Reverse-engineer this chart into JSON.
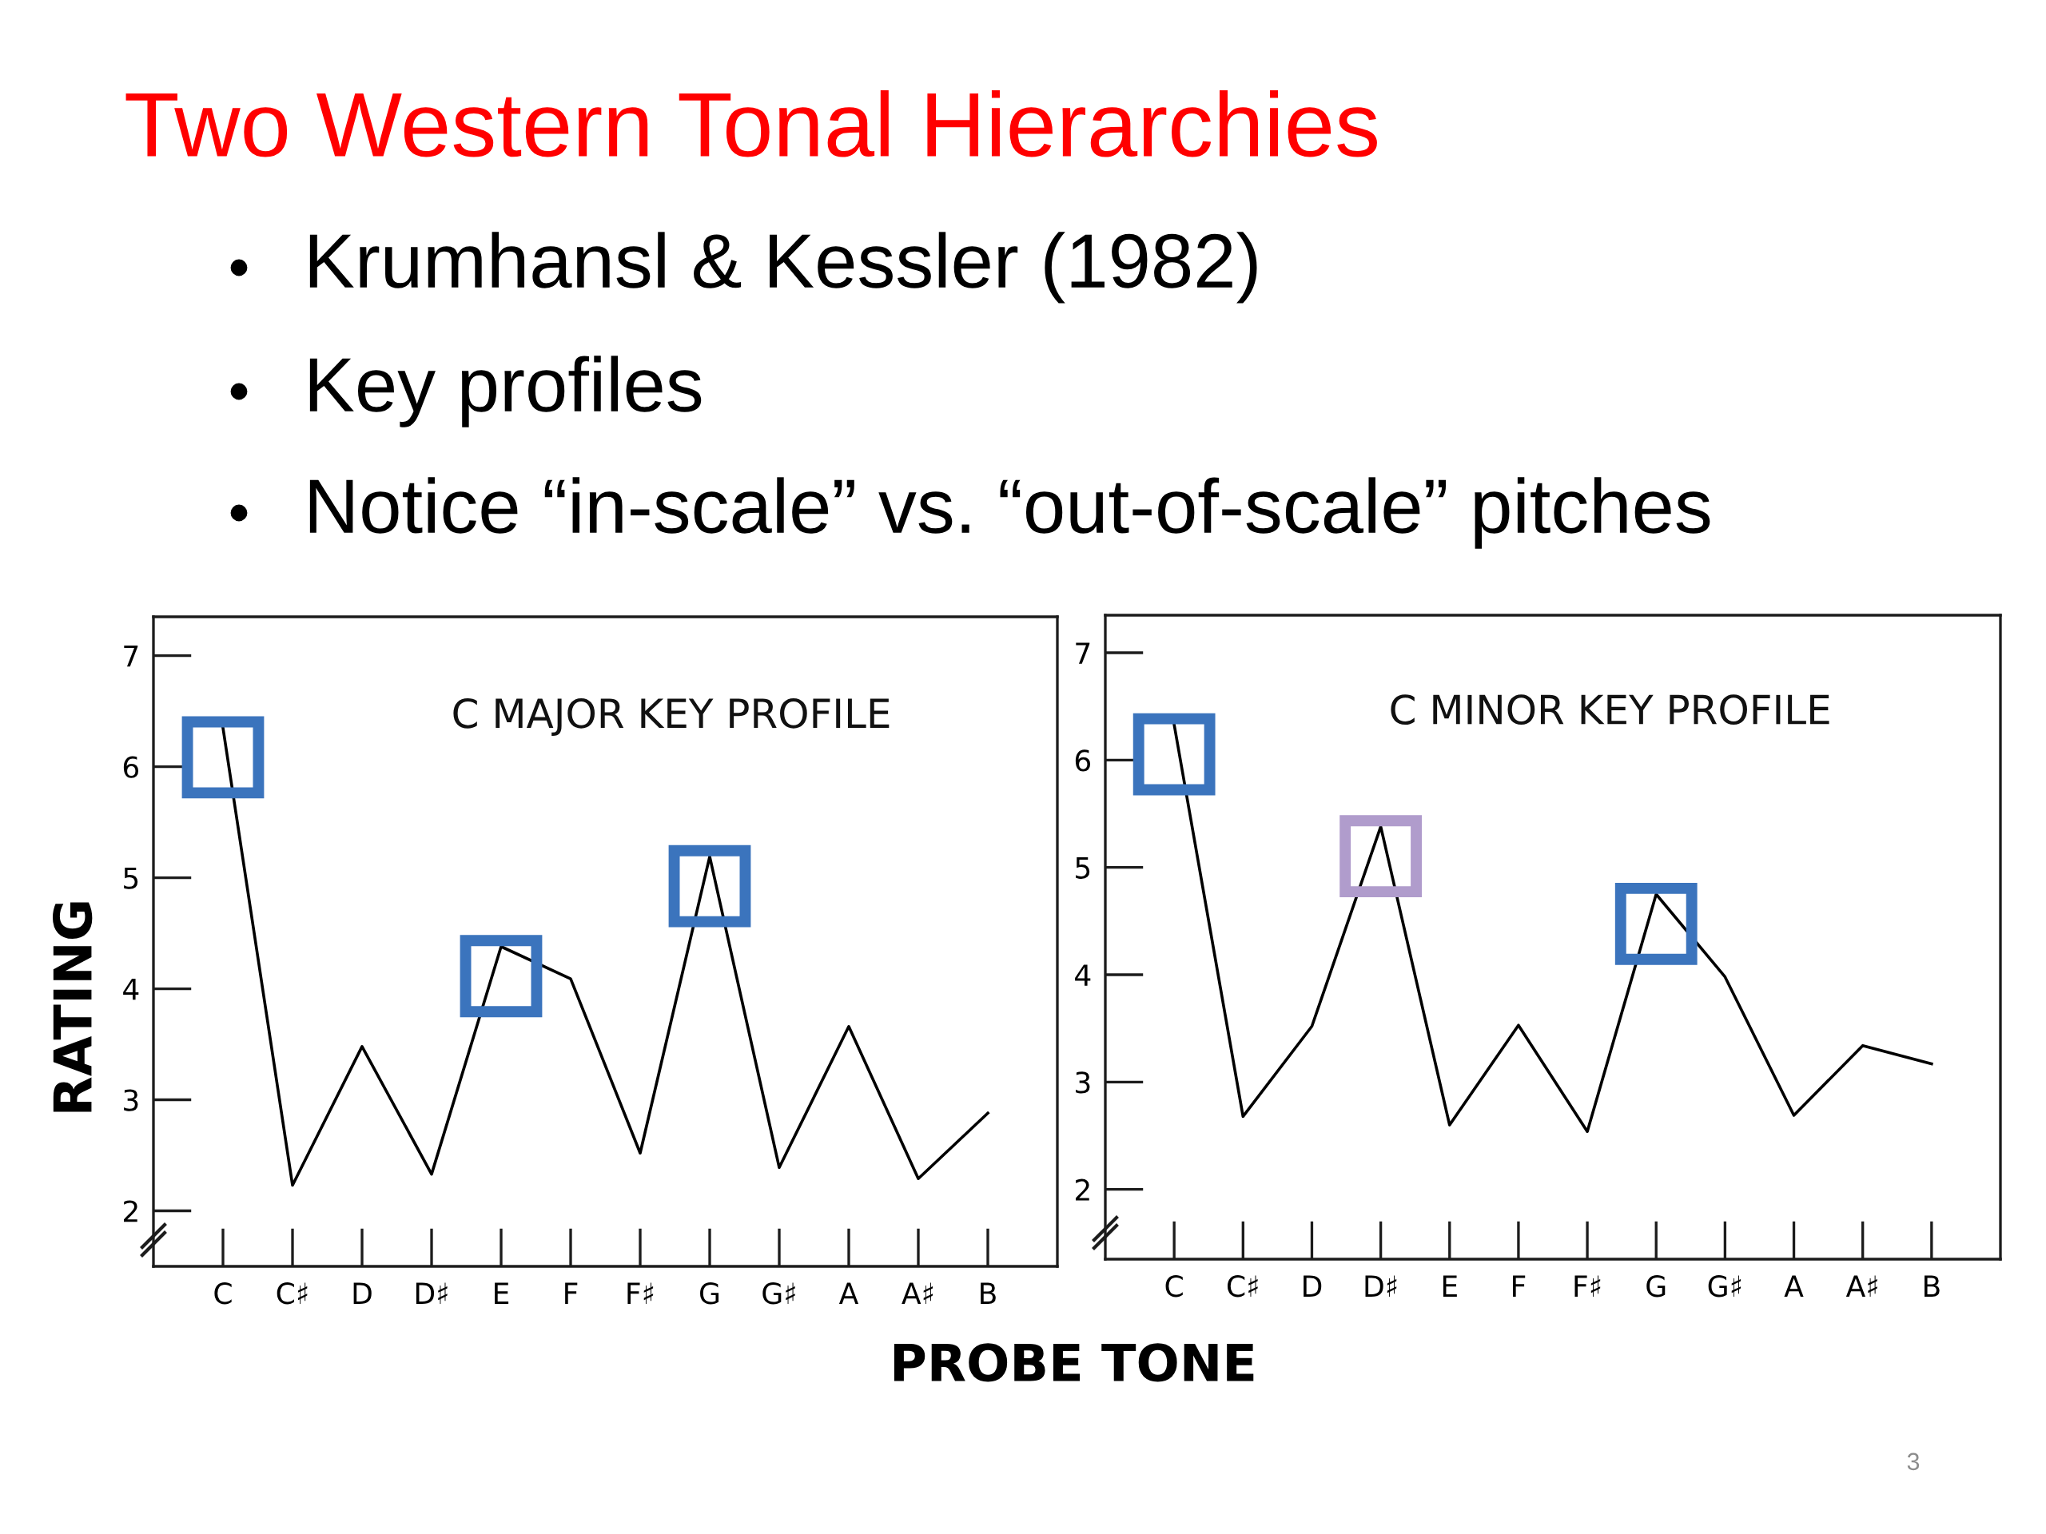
{
  "chart_data": [
    {
      "type": "other",
      "title": "Two Western Tonal Hierarchies",
      "annotations": [
        "Krumhansl & Kessler (1982)",
        "Key profiles",
        "Notice “in-scale” vs. “out-of-scale” pitches",
        "3"
      ]
    },
    {
      "type": "line",
      "title": "C MAJOR KEY PROFILE",
      "ylabel": "RATING",
      "xlabel": "PROBE TONE",
      "categories": [
        "C",
        "C♯",
        "D",
        "D♯",
        "E",
        "F",
        "F♯",
        "G",
        "G♯",
        "A",
        "A♯",
        "B"
      ],
      "ylim": [
        1.5,
        7.35
      ],
      "yticks": [
        2,
        3,
        4,
        5,
        6,
        7
      ],
      "series": [
        {
          "type": "line",
          "color": "#000000",
          "values": [
            6.35,
            2.23,
            3.48,
            2.33,
            4.38,
            4.09,
            2.52,
            5.19,
            2.39,
            3.66,
            2.29,
            2.88
          ]
        }
      ]
    },
    {
      "type": "line",
      "title": "C MINOR KEY PROFILE",
      "categories": [
        "C",
        "C♯",
        "D",
        "D♯",
        "E",
        "F",
        "F♯",
        "G",
        "G♯",
        "A",
        "A♯",
        "B"
      ],
      "ylim": [
        1.35,
        7.35
      ],
      "yticks": [
        2,
        3,
        4,
        5,
        6,
        7
      ],
      "series": [
        {
          "type": "line",
          "color": "#000000",
          "values": [
            6.33,
            2.68,
            3.52,
            5.38,
            2.6,
            3.53,
            2.54,
            4.75,
            3.98,
            2.69,
            3.34,
            3.17
          ]
        }
      ]
    }
  ]
}
